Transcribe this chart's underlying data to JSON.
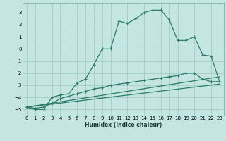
{
  "title": "",
  "xlabel": "Humidex (Indice chaleur)",
  "xlim": [
    -0.5,
    23.5
  ],
  "ylim": [
    -5.5,
    3.8
  ],
  "xticks": [
    0,
    1,
    2,
    3,
    4,
    5,
    6,
    7,
    8,
    9,
    10,
    11,
    12,
    13,
    14,
    15,
    16,
    17,
    18,
    19,
    20,
    21,
    22,
    23
  ],
  "yticks": [
    -5,
    -4,
    -3,
    -2,
    -1,
    0,
    1,
    2,
    3
  ],
  "bg_color": "#c5e5e3",
  "grid_color": "#9ec8c5",
  "line_color": "#2a7a6a",
  "curve1_x": [
    0,
    1,
    2,
    3,
    4,
    5,
    6,
    7,
    8,
    9,
    10,
    11,
    12,
    13,
    14,
    15,
    16,
    17,
    18,
    19,
    20,
    21,
    22,
    23
  ],
  "curve1_y": [
    -4.8,
    -5.0,
    -5.0,
    -4.0,
    -3.8,
    -3.7,
    -2.8,
    -2.5,
    -1.3,
    0.0,
    0.0,
    2.3,
    2.1,
    2.5,
    3.0,
    3.2,
    3.2,
    2.4,
    0.7,
    0.7,
    1.0,
    -0.5,
    -0.6,
    -2.7
  ],
  "curve2_x": [
    0,
    1,
    2,
    3,
    4,
    5,
    6,
    7,
    8,
    9,
    10,
    11,
    12,
    13,
    14,
    15,
    16,
    17,
    18,
    19,
    20,
    21,
    22,
    23
  ],
  "curve2_y": [
    -4.8,
    -4.9,
    -4.8,
    -4.5,
    -4.1,
    -3.9,
    -3.7,
    -3.5,
    -3.3,
    -3.2,
    -3.0,
    -2.9,
    -2.8,
    -2.7,
    -2.6,
    -2.5,
    -2.4,
    -2.3,
    -2.2,
    -2.0,
    -2.0,
    -2.5,
    -2.7,
    -2.7
  ],
  "line1_x": [
    0,
    23
  ],
  "line1_y": [
    -4.8,
    -2.3
  ],
  "line2_x": [
    0,
    23
  ],
  "line2_y": [
    -4.8,
    -2.9
  ],
  "xlabel_fontsize": 5.5,
  "tick_fontsize": 5.0,
  "marker_size": 3,
  "linewidth": 0.9
}
